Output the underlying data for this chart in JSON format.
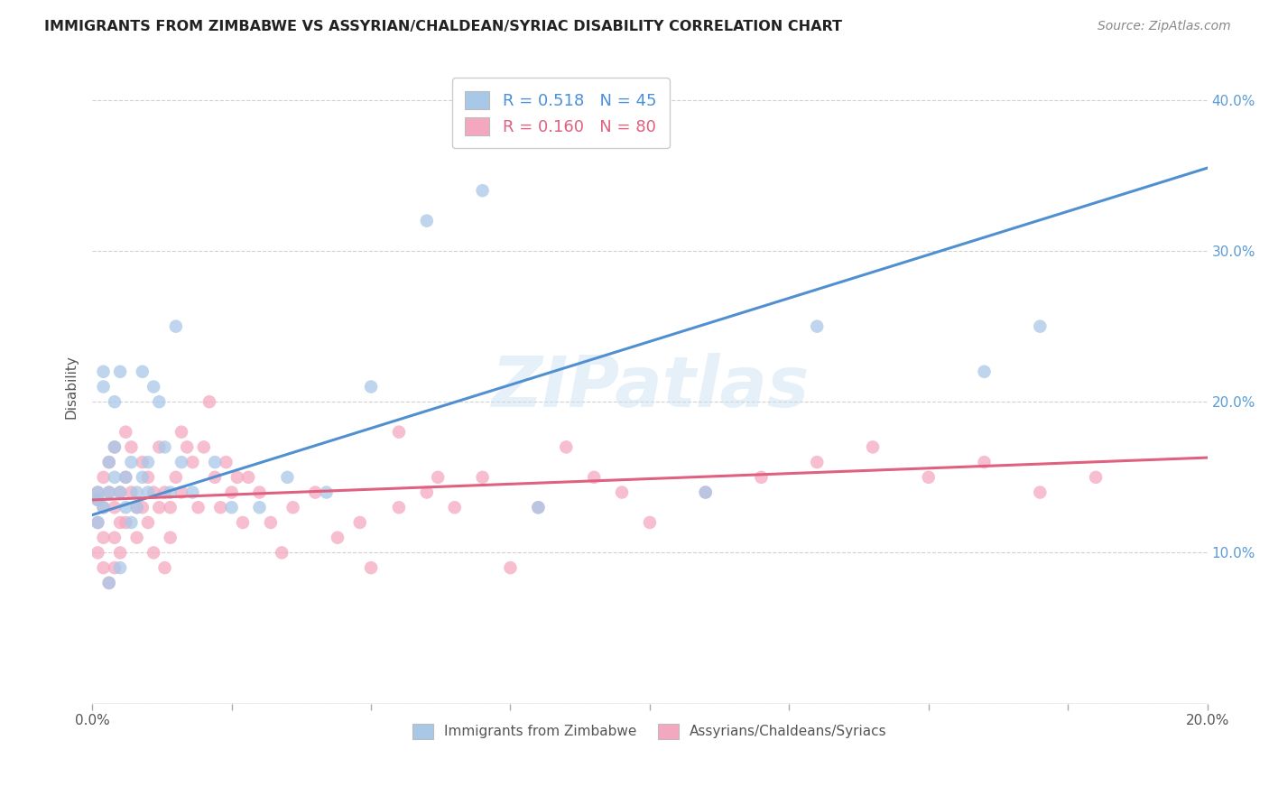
{
  "title": "IMMIGRANTS FROM ZIMBABWE VS ASSYRIAN/CHALDEAN/SYRIAC DISABILITY CORRELATION CHART",
  "source": "Source: ZipAtlas.com",
  "ylabel": "Disability",
  "x_min": 0.0,
  "x_max": 0.2,
  "y_min": 0.0,
  "y_max": 0.42,
  "blue_R": 0.518,
  "blue_N": 45,
  "pink_R": 0.16,
  "pink_N": 80,
  "blue_color": "#a8c8e8",
  "pink_color": "#f4a8c0",
  "blue_line_color": "#5090d0",
  "pink_line_color": "#e06080",
  "watermark": "ZIPatlas",
  "legend_label_blue": "Immigrants from Zimbabwe",
  "legend_label_pink": "Assyrians/Chaldeans/Syriacs",
  "blue_line_x0": 0.0,
  "blue_line_y0": 0.125,
  "blue_line_x1": 0.2,
  "blue_line_y1": 0.355,
  "pink_line_x0": 0.0,
  "pink_line_y0": 0.135,
  "pink_line_x1": 0.2,
  "pink_line_y1": 0.163,
  "blue_scatter_x": [
    0.001,
    0.001,
    0.001,
    0.002,
    0.002,
    0.002,
    0.003,
    0.003,
    0.003,
    0.004,
    0.004,
    0.004,
    0.005,
    0.005,
    0.005,
    0.006,
    0.006,
    0.007,
    0.007,
    0.008,
    0.008,
    0.009,
    0.009,
    0.01,
    0.01,
    0.011,
    0.012,
    0.013,
    0.014,
    0.015,
    0.016,
    0.018,
    0.022,
    0.025,
    0.03,
    0.035,
    0.042,
    0.05,
    0.06,
    0.07,
    0.08,
    0.11,
    0.13,
    0.16,
    0.17
  ],
  "blue_scatter_y": [
    0.135,
    0.14,
    0.12,
    0.22,
    0.21,
    0.13,
    0.16,
    0.14,
    0.08,
    0.17,
    0.2,
    0.15,
    0.22,
    0.14,
    0.09,
    0.15,
    0.13,
    0.16,
    0.12,
    0.13,
    0.14,
    0.15,
    0.22,
    0.14,
    0.16,
    0.21,
    0.2,
    0.17,
    0.14,
    0.25,
    0.16,
    0.14,
    0.16,
    0.13,
    0.13,
    0.15,
    0.14,
    0.21,
    0.32,
    0.34,
    0.13,
    0.14,
    0.25,
    0.22,
    0.25
  ],
  "pink_scatter_x": [
    0.001,
    0.001,
    0.001,
    0.001,
    0.002,
    0.002,
    0.002,
    0.002,
    0.003,
    0.003,
    0.003,
    0.004,
    0.004,
    0.004,
    0.004,
    0.005,
    0.005,
    0.005,
    0.006,
    0.006,
    0.006,
    0.007,
    0.007,
    0.008,
    0.008,
    0.009,
    0.009,
    0.01,
    0.01,
    0.011,
    0.011,
    0.012,
    0.012,
    0.013,
    0.013,
    0.014,
    0.014,
    0.015,
    0.016,
    0.016,
    0.017,
    0.018,
    0.019,
    0.02,
    0.021,
    0.022,
    0.023,
    0.024,
    0.025,
    0.026,
    0.027,
    0.028,
    0.03,
    0.032,
    0.034,
    0.036,
    0.04,
    0.044,
    0.048,
    0.055,
    0.06,
    0.065,
    0.07,
    0.08,
    0.09,
    0.1,
    0.11,
    0.12,
    0.13,
    0.14,
    0.15,
    0.16,
    0.17,
    0.18,
    0.05,
    0.055,
    0.062,
    0.075,
    0.085,
    0.095
  ],
  "pink_scatter_y": [
    0.135,
    0.14,
    0.12,
    0.1,
    0.13,
    0.09,
    0.15,
    0.11,
    0.16,
    0.14,
    0.08,
    0.17,
    0.13,
    0.11,
    0.09,
    0.14,
    0.12,
    0.1,
    0.18,
    0.15,
    0.12,
    0.17,
    0.14,
    0.13,
    0.11,
    0.16,
    0.13,
    0.15,
    0.12,
    0.14,
    0.1,
    0.17,
    0.13,
    0.14,
    0.09,
    0.13,
    0.11,
    0.15,
    0.18,
    0.14,
    0.17,
    0.16,
    0.13,
    0.17,
    0.2,
    0.15,
    0.13,
    0.16,
    0.14,
    0.15,
    0.12,
    0.15,
    0.14,
    0.12,
    0.1,
    0.13,
    0.14,
    0.11,
    0.12,
    0.13,
    0.14,
    0.13,
    0.15,
    0.13,
    0.15,
    0.12,
    0.14,
    0.15,
    0.16,
    0.17,
    0.15,
    0.16,
    0.14,
    0.15,
    0.09,
    0.18,
    0.15,
    0.09,
    0.17,
    0.14
  ],
  "y_tick_values": [
    0.0,
    0.1,
    0.2,
    0.3,
    0.4
  ],
  "y_tick_labels_right": [
    "",
    "10.0%",
    "20.0%",
    "30.0%",
    "40.0%"
  ],
  "x_tick_values": [
    0.0,
    0.025,
    0.05,
    0.075,
    0.1,
    0.125,
    0.15,
    0.175,
    0.2
  ],
  "x_tick_labels": [
    "0.0%",
    "",
    "",
    "",
    "",
    "",
    "",
    "",
    "20.0%"
  ]
}
